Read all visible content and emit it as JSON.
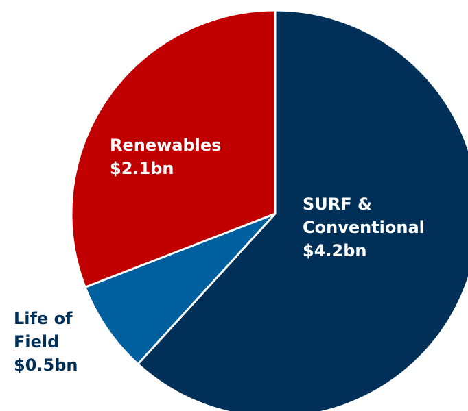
{
  "chart_data": {
    "type": "pie",
    "categories": [
      "SURF & Conventional",
      "Life of Field",
      "Renewables"
    ],
    "values": [
      4.2,
      0.5,
      2.1
    ],
    "value_labels": [
      "$4.2bn",
      "$0.5bn",
      "$2.1bn"
    ],
    "colors": [
      "#003057",
      "#005f9e",
      "#c00000"
    ]
  }
}
